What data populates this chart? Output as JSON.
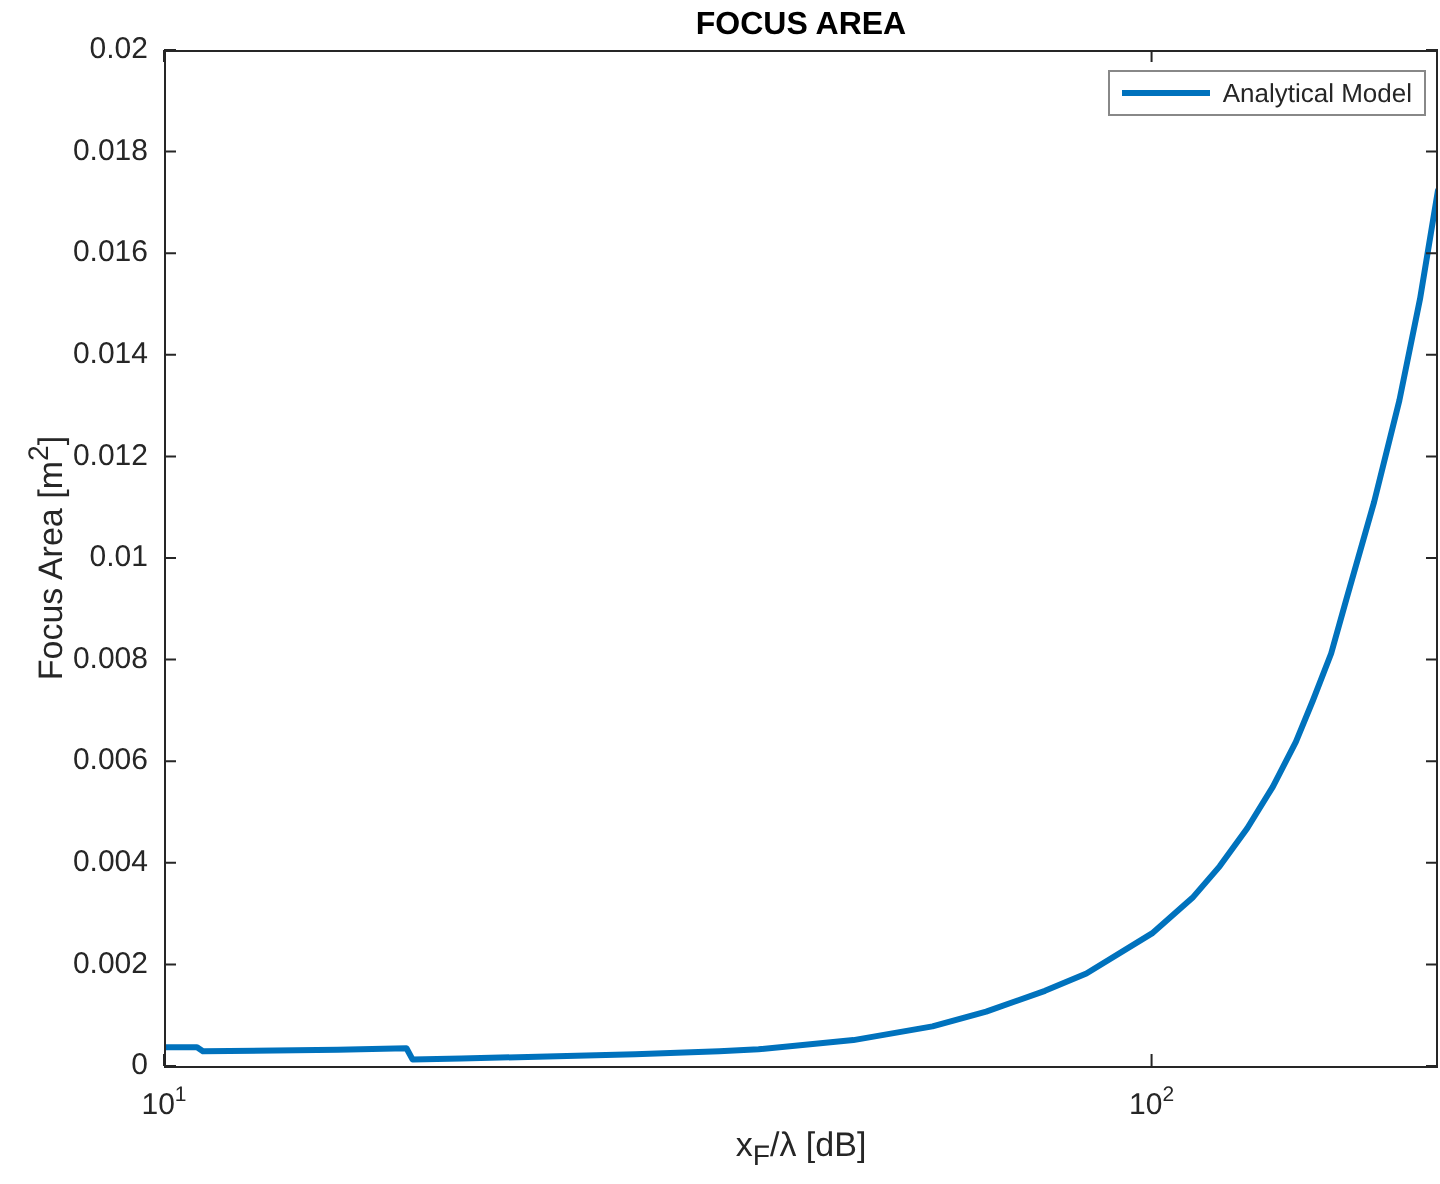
{
  "chart_data": {
    "type": "line",
    "title": "FOCUS AREA",
    "xlabel": "x$_{F}$/λ [dB]",
    "ylabel": "Focus Area [m$^{2}$]",
    "log": "x",
    "legend": "top right",
    "grid": false,
    "xlim": [
      10,
      195
    ],
    "xticks": [
      {
        "value": 10,
        "label": "10$^{1}$"
      },
      {
        "value": 100,
        "label": "10$^{2}$"
      }
    ],
    "ylim": [
      0,
      0.02
    ],
    "yticks": [
      0,
      0.002,
      0.004,
      0.006,
      0.008,
      0.01,
      0.012,
      0.014,
      0.016,
      0.018,
      0.02
    ],
    "series": [
      {
        "name": "Analytical Model",
        "color": "#0072bd",
        "x": [
          10,
          10.8,
          10.95,
          15,
          17.6,
          17.85,
          20,
          25,
          30,
          36.5,
          40,
          49.9,
          60,
          68,
          78,
          85.9,
          100.1,
          110,
          117.2,
          125,
          132.7,
          140,
          145.7,
          152,
          157.4,
          168,
          178.2,
          187,
          195
        ],
        "values": [
          0.00037,
          0.00037,
          0.00029,
          0.00032,
          0.00035,
          0.00013,
          0.00015,
          0.00019,
          0.00023,
          0.00029,
          0.00033,
          0.00051,
          0.00078,
          0.00107,
          0.00148,
          0.00182,
          0.00261,
          0.00331,
          0.00393,
          0.00468,
          0.0055,
          0.00638,
          0.0072,
          0.00812,
          0.00917,
          0.0111,
          0.0131,
          0.0151,
          0.01724
        ]
      }
    ]
  }
}
